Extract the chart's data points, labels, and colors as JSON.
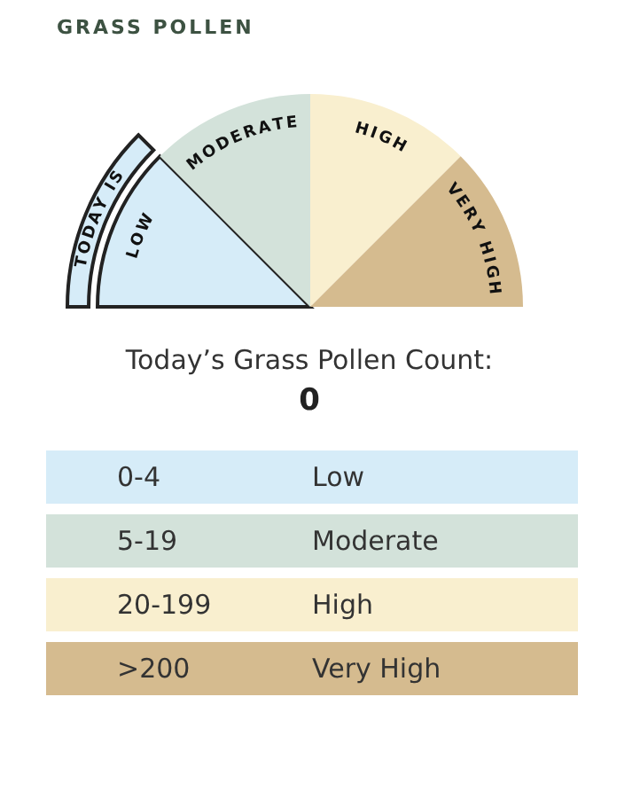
{
  "chart_data": {
    "type": "pie",
    "title": "GRASS POLLEN",
    "subtitle": "Today’s Grass Pollen Count:",
    "categories": [
      "LOW",
      "MODERATE",
      "HIGH",
      "VERY HIGH"
    ],
    "values": [
      25,
      25,
      25,
      25
    ],
    "colors": [
      "#d6ecf8",
      "#d3e2da",
      "#f9efcf",
      "#d5bb8f"
    ],
    "annotations": [
      {
        "text": "TODAY IS",
        "x": "LOW"
      },
      "0",
      "0-4",
      "Low",
      "5-19",
      "Moderate",
      "20-199",
      "High",
      ">200",
      "Very High"
    ]
  }
}
